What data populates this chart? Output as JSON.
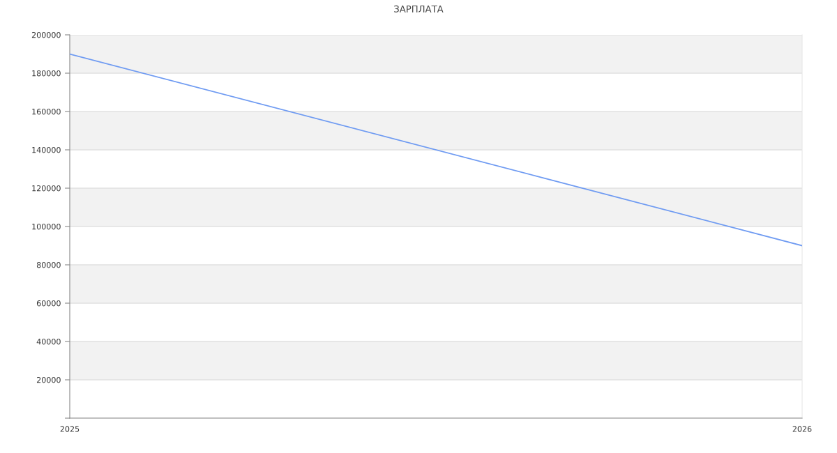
{
  "chart_data": {
    "type": "line",
    "title": "ЗАРПЛАТА",
    "x": [
      "2025",
      "2026"
    ],
    "series": [
      {
        "color": "#6f9bf2",
        "values": [
          190000,
          90000
        ]
      }
    ],
    "xlim": [
      "2025",
      "2026"
    ],
    "xticks": [
      "2025",
      "2026"
    ],
    "ylim": [
      0,
      200000
    ],
    "yticks": [
      {
        "value": 0,
        "label": null
      },
      20000,
      40000,
      60000,
      80000,
      100000,
      120000,
      140000,
      160000,
      180000,
      200000
    ],
    "grid": "y",
    "marker": "none",
    "line_style": "solid"
  }
}
